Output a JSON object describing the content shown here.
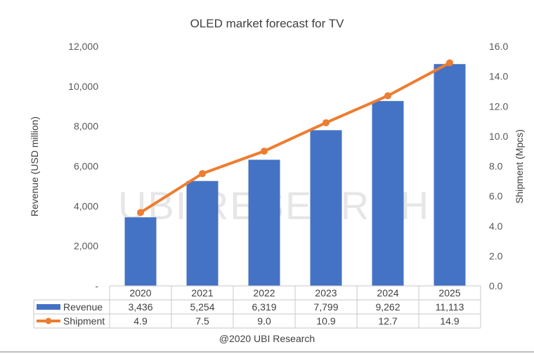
{
  "chart_data": {
    "type": "bar",
    "title": "OLED market forecast for TV",
    "source": "@2020 UBI Research",
    "watermark": "UBI RESEARCH",
    "categories": [
      "2020",
      "2021",
      "2022",
      "2023",
      "2024",
      "2025"
    ],
    "y_left": {
      "label": "Revenue (USD million)",
      "range": [
        0,
        12000
      ],
      "ticks": [
        "-",
        "2,000",
        "4,000",
        "6,000",
        "8,000",
        "10,000",
        "12,000"
      ]
    },
    "y_right": {
      "label": "Shipment (Mpcs)",
      "range": [
        0,
        16
      ],
      "ticks": [
        "0.0",
        "2.0",
        "4.0",
        "6.0",
        "8.0",
        "10.0",
        "12.0",
        "14.0",
        "16.0"
      ]
    },
    "series": [
      {
        "name": "Revenue",
        "kind": "bar",
        "axis": "left",
        "color": "#4472c4",
        "values": [
          3436,
          5254,
          6319,
          7799,
          9262,
          11113
        ],
        "labels": [
          "3,436",
          "5,254",
          "6,319",
          "7,799",
          "9,262",
          "11,113"
        ]
      },
      {
        "name": "Shipment",
        "kind": "line",
        "axis": "right",
        "color": "#ed7d31",
        "values": [
          4.9,
          7.5,
          9.0,
          10.9,
          12.7,
          14.9
        ],
        "labels": [
          "4.9",
          "7.5",
          "9.0",
          "10.9",
          "12.7",
          "14.9"
        ]
      }
    ],
    "data_table": true,
    "grid": false
  }
}
